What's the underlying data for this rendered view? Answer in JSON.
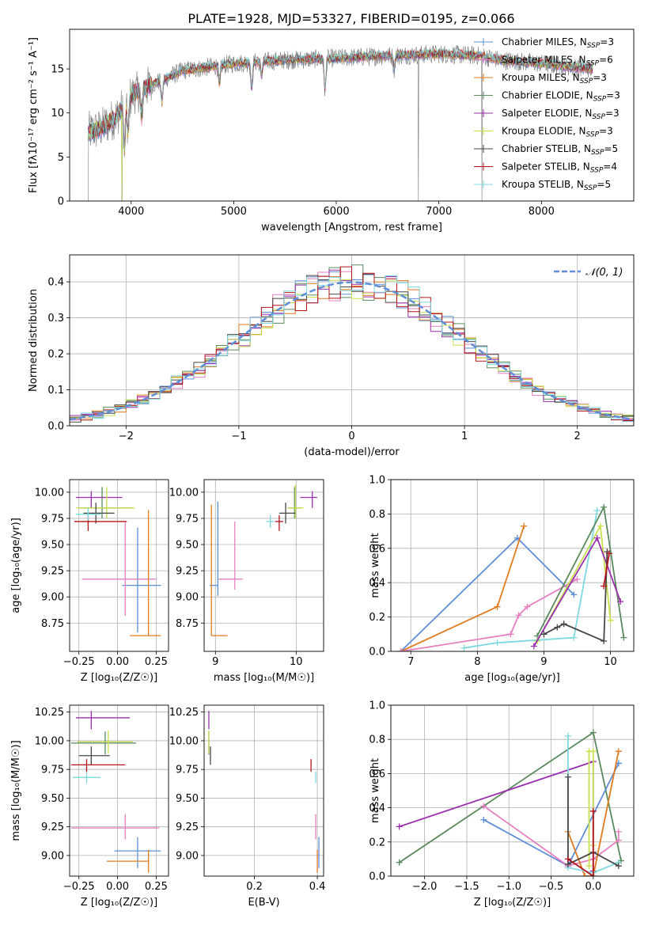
{
  "title": "PLATE=1928, MJD=53327, FIBERID=0195, z=0.066",
  "colors": {
    "Chabrier MILES": "#5f8fd9",
    "Salpeter MILES": "#e67fbf",
    "Kroupa MILES": "#e07b1f",
    "Chabrier ELODIE": "#5a8a5e",
    "Salpeter ELODIE": "#9b2fae",
    "Kroupa ELODIE": "#c7e04e",
    "Chabrier STELIB": "#474747",
    "Salpeter STELIB": "#b4141b",
    "Kroupa STELIB": "#7ed8e0"
  },
  "chart_data": [
    {
      "type": "line",
      "id": "spectrum",
      "xlabel": "wavelength [Angstrom, rest frame]",
      "ylabel": "Flux [f$_\\lambda$10$^{-17}$ erg cm$^{-2}$ s$^{-1}$ A$^{-1}$]",
      "ylabel_text": "Flux [fλ10⁻¹⁷ erg cm⁻² s⁻¹ A⁻¹]",
      "xlim": [
        3400,
        8900
      ],
      "ylim": [
        0,
        19.5
      ],
      "xticks": [
        4000,
        5000,
        6000,
        7000,
        8000
      ],
      "yticks": [
        0,
        5,
        10,
        15
      ],
      "legend_position": "right",
      "legend": [
        "Chabrier MILES, N_SSP=3",
        "Salpeter MILES, N_SSP=6",
        "Kroupa MILES, N_SSP=3",
        "Chabrier ELODIE, N_SSP=3",
        "Salpeter ELODIE, N_SSP=3",
        "Kroupa ELODIE, N_SSP=3",
        "Chabrier STELIB, N_SSP=5",
        "Salpeter STELIB, N_SSP=4",
        "Kroupa STELIB, N_SSP=5"
      ],
      "legend_labels": [
        {
          "prefix": "Chabrier MILES, N",
          "sub": "SSP",
          "suffix": "=3"
        },
        {
          "prefix": "Salpeter MILES, N",
          "sub": "SSP",
          "suffix": "=6"
        },
        {
          "prefix": "Kroupa MILES, N",
          "sub": "SSP",
          "suffix": "=3"
        },
        {
          "prefix": "Chabrier ELODIE, N",
          "sub": "SSP",
          "suffix": "=3"
        },
        {
          "prefix": "Salpeter ELODIE, N",
          "sub": "SSP",
          "suffix": "=3"
        },
        {
          "prefix": "Kroupa ELODIE, N",
          "sub": "SSP",
          "suffix": "=3"
        },
        {
          "prefix": "Chabrier STELIB, N",
          "sub": "SSP",
          "suffix": "=5"
        },
        {
          "prefix": "Salpeter STELIB, N",
          "sub": "SSP",
          "suffix": "=4"
        },
        {
          "prefix": "Kroupa STELIB, N",
          "sub": "SSP",
          "suffix": "=5"
        }
      ],
      "continuum": {
        "x": [
          3580,
          3700,
          3850,
          4000,
          4200,
          4500,
          5000,
          5500,
          6000,
          6500,
          7000,
          7400,
          7600,
          8000,
          8300,
          8500
        ],
        "y": [
          7.8,
          8.2,
          9.5,
          12.0,
          13.2,
          14.8,
          15.6,
          16.0,
          16.2,
          16.5,
          16.7,
          16.5,
          16.0,
          15.6,
          15.2,
          15.0
        ]
      },
      "absorption_features": [
        {
          "x": 3934,
          "depth": 5
        },
        {
          "x": 3969,
          "depth": 4
        },
        {
          "x": 4102,
          "depth": 3
        },
        {
          "x": 4300,
          "depth": 2.5
        },
        {
          "x": 4861,
          "depth": 2
        },
        {
          "x": 5175,
          "depth": 3
        },
        {
          "x": 5270,
          "depth": 1.5
        },
        {
          "x": 5890,
          "depth": 3.5
        },
        {
          "x": 6563,
          "depth": 1.5
        }
      ],
      "spikes_to_zero": [
        3580,
        3910,
        6800,
        7420
      ]
    },
    {
      "type": "histogram",
      "id": "residuals",
      "xlabel": "(data-model)/error",
      "ylabel": "Normed distribution",
      "xlim": [
        -2.5,
        2.5
      ],
      "ylim": [
        0,
        0.475
      ],
      "xticks": [
        -2,
        -1,
        0,
        1,
        2
      ],
      "yticks": [
        0.0,
        0.1,
        0.2,
        0.3,
        0.4
      ],
      "bin_width": 0.1,
      "grid": true,
      "legend": [
        "𝒩(0, 1)"
      ],
      "legend_position": "top-right",
      "reference_curve": {
        "name": "𝒩(0, 1)",
        "mean": 0,
        "sigma": 1,
        "style": "dashed",
        "color": "#5f8fd9"
      }
    },
    {
      "type": "scatter",
      "id": "age_vs_Z",
      "xlabel": "Z [log₁₀(Z/Z☉)]",
      "ylabel": "age  [log₁₀(age/yr)]",
      "xlim": [
        -0.31,
        0.33
      ],
      "ylim": [
        8.48,
        10.12
      ],
      "xticks": [
        -0.25,
        0.0,
        0.25
      ],
      "yticks": [
        8.75,
        9.0,
        9.25,
        9.5,
        9.75,
        10.0
      ],
      "grid": true,
      "errorbars": [
        {
          "model": "Chabrier MILES",
          "x": 0.13,
          "y": 9.11,
          "xerr": [
            0.1,
            0.15
          ],
          "yerr": [
            0.45,
            0.55
          ]
        },
        {
          "model": "Salpeter MILES",
          "x": 0.05,
          "y": 9.17,
          "xerr": [
            0.28,
            0.2
          ],
          "yerr": [
            0.35,
            0.55
          ]
        },
        {
          "model": "Kroupa MILES",
          "x": 0.2,
          "y": 8.63,
          "xerr": [
            0.12,
            0.08
          ],
          "yerr": [
            0.0,
            1.2
          ]
        },
        {
          "model": "Chabrier ELODIE",
          "x": -0.1,
          "y": 9.85,
          "xerr": [
            0.15,
            0.2
          ],
          "yerr": [
            0.1,
            0.2
          ]
        },
        {
          "model": "Salpeter ELODIE",
          "x": -0.17,
          "y": 9.95,
          "xerr": [
            0.1,
            0.2
          ],
          "yerr": [
            0.1,
            0.06
          ]
        },
        {
          "model": "Kroupa ELODIE",
          "x": -0.07,
          "y": 9.85,
          "xerr": [
            0.2,
            0.18
          ],
          "yerr": [
            0.1,
            0.2
          ]
        },
        {
          "model": "Chabrier STELIB",
          "x": -0.14,
          "y": 9.8,
          "xerr": [
            0.08,
            0.12
          ],
          "yerr": [
            0.1,
            0.1
          ]
        },
        {
          "model": "Salpeter STELIB",
          "x": -0.19,
          "y": 9.72,
          "xerr": [
            0.09,
            0.25
          ],
          "yerr": [
            0.09,
            0.06
          ]
        },
        {
          "model": "Kroupa STELIB",
          "x": -0.19,
          "y": 9.79,
          "xerr": [
            0.08,
            0.08
          ],
          "yerr": [
            0.06,
            0.06
          ]
        }
      ]
    },
    {
      "type": "scatter",
      "id": "age_vs_mass",
      "xlabel": "mass [log₁₀(M/M☉)]",
      "ylabel": "",
      "xlim": [
        8.86,
        10.34
      ],
      "ylim": [
        8.48,
        10.12
      ],
      "xticks": [
        9,
        10
      ],
      "yticks": [
        8.75,
        9.0,
        9.25,
        9.5,
        9.75,
        10.0
      ],
      "grid": true,
      "errorbars": [
        {
          "model": "Chabrier MILES",
          "x": 9.03,
          "y": 9.11,
          "xerr": [
            0.1,
            0.0
          ],
          "yerr": [
            0.1,
            0.8
          ]
        },
        {
          "model": "Salpeter MILES",
          "x": 9.24,
          "y": 9.17,
          "xerr": [
            0.2,
            0.1
          ],
          "yerr": [
            0.1,
            0.55
          ]
        },
        {
          "model": "Kroupa MILES",
          "x": 8.95,
          "y": 8.63,
          "xerr": [
            0.0,
            0.2
          ],
          "yerr": [
            0.0,
            1.25
          ]
        },
        {
          "model": "Chabrier ELODIE",
          "x": 9.98,
          "y": 9.85,
          "xerr": [
            0.08,
            0.08
          ],
          "yerr": [
            0.1,
            0.2
          ]
        },
        {
          "model": "Salpeter ELODIE",
          "x": 10.2,
          "y": 9.95,
          "xerr": [
            0.15,
            0.06
          ],
          "yerr": [
            0.1,
            0.06
          ]
        },
        {
          "model": "Kroupa ELODIE",
          "x": 9.99,
          "y": 9.85,
          "xerr": [
            0.1,
            0.1
          ],
          "yerr": [
            0.1,
            0.22
          ]
        },
        {
          "model": "Chabrier STELIB",
          "x": 9.87,
          "y": 9.8,
          "xerr": [
            0.08,
            0.12
          ],
          "yerr": [
            0.1,
            0.1
          ]
        },
        {
          "model": "Salpeter STELIB",
          "x": 9.79,
          "y": 9.72,
          "xerr": [
            0.05,
            0.05
          ],
          "yerr": [
            0.09,
            0.06
          ]
        },
        {
          "model": "Kroupa STELIB",
          "x": 9.68,
          "y": 9.72,
          "xerr": [
            0.05,
            0.05
          ],
          "yerr": [
            0.06,
            0.06
          ]
        }
      ]
    },
    {
      "type": "line",
      "id": "weight_vs_age",
      "xlabel": "age  [log₁₀(age/yr)]",
      "ylabel": "mass weight",
      "xlim": [
        6.7,
        10.35
      ],
      "ylim": [
        0,
        1.0
      ],
      "xticks": [
        7,
        8,
        9,
        10
      ],
      "yticks": [
        0.0,
        0.2,
        0.4,
        0.6,
        0.8,
        1.0
      ],
      "grid": true,
      "series": [
        {
          "name": "Chabrier MILES",
          "x": [
            6.85,
            8.6,
            9.45
          ],
          "y": [
            0.0,
            0.66,
            0.33
          ]
        },
        {
          "name": "Kroupa MILES",
          "x": [
            6.85,
            8.3,
            8.7
          ],
          "y": [
            0.0,
            0.26,
            0.73
          ]
        },
        {
          "name": "Salpeter MILES",
          "x": [
            6.85,
            8.5,
            8.62,
            8.75,
            9.5
          ],
          "y": [
            0.0,
            0.1,
            0.21,
            0.26,
            0.42
          ]
        },
        {
          "name": "Kroupa STELIB",
          "x": [
            7.8,
            8.3,
            9.45,
            9.8
          ],
          "y": [
            0.02,
            0.05,
            0.08,
            0.82
          ]
        },
        {
          "name": "Chabrier ELODIE",
          "x": [
            8.9,
            9.9,
            10.2
          ],
          "y": [
            0.09,
            0.84,
            0.08
          ]
        },
        {
          "name": "Kroupa ELODIE",
          "x": [
            8.9,
            9.85,
            10.0
          ],
          "y": [
            0.06,
            0.73,
            0.18
          ]
        },
        {
          "name": "Salpeter ELODIE",
          "x": [
            8.85,
            9.8,
            10.15
          ],
          "y": [
            0.03,
            0.66,
            0.29
          ]
        },
        {
          "name": "Chabrier STELIB",
          "x": [
            9.0,
            9.2,
            9.3,
            9.9,
            9.95
          ],
          "y": [
            0.1,
            0.14,
            0.16,
            0.06,
            0.58
          ]
        },
        {
          "name": "Salpeter STELIB",
          "x": [
            9.9,
            9.98
          ],
          "y": [
            0.38,
            0.57
          ]
        }
      ]
    },
    {
      "type": "scatter",
      "id": "mass_vs_Z",
      "xlabel": "Z [log₁₀(Z/Z☉)]",
      "ylabel": "mass [log₁₀(M/M☉)]",
      "xlim": [
        -0.31,
        0.33
      ],
      "ylim": [
        8.82,
        10.31
      ],
      "xticks": [
        -0.25,
        0.0,
        0.25
      ],
      "yticks": [
        9.0,
        9.25,
        9.5,
        9.75,
        10.0,
        10.25
      ],
      "grid": true,
      "errorbars": [
        {
          "model": "Chabrier MILES",
          "x": 0.13,
          "y": 9.04,
          "xerr": [
            0.15,
            0.15
          ],
          "yerr": [
            0.15,
            0.12
          ]
        },
        {
          "model": "Salpeter MILES",
          "x": 0.05,
          "y": 9.24,
          "xerr": [
            0.35,
            0.22
          ],
          "yerr": [
            0.1,
            0.12
          ]
        },
        {
          "model": "Kroupa MILES",
          "x": 0.2,
          "y": 8.95,
          "xerr": [
            0.27,
            0.0
          ],
          "yerr": [
            0.1,
            0.1
          ]
        },
        {
          "model": "Chabrier ELODIE",
          "x": -0.08,
          "y": 9.98,
          "xerr": [
            0.22,
            0.2
          ],
          "yerr": [
            0.1,
            0.1
          ]
        },
        {
          "model": "Salpeter ELODIE",
          "x": -0.17,
          "y": 10.2,
          "xerr": [
            0.1,
            0.25
          ],
          "yerr": [
            0.1,
            0.06
          ]
        },
        {
          "model": "Kroupa ELODIE",
          "x": -0.06,
          "y": 9.99,
          "xerr": [
            0.2,
            0.16
          ],
          "yerr": [
            0.1,
            0.1
          ]
        },
        {
          "model": "Chabrier STELIB",
          "x": -0.17,
          "y": 9.87,
          "xerr": [
            0.08,
            0.12
          ],
          "yerr": [
            0.08,
            0.08
          ]
        },
        {
          "model": "Salpeter STELIB",
          "x": -0.2,
          "y": 9.79,
          "xerr": [
            0.1,
            0.25
          ],
          "yerr": [
            0.06,
            0.05
          ]
        },
        {
          "model": "Kroupa STELIB",
          "x": -0.2,
          "y": 9.68,
          "xerr": [
            0.09,
            0.09
          ],
          "yerr": [
            0.05,
            0.05
          ]
        }
      ]
    },
    {
      "type": "scatter",
      "id": "mass_vs_ebv",
      "xlabel": "E(B-V)",
      "ylabel": "",
      "xlim": [
        0.04,
        0.42
      ],
      "ylim": [
        8.82,
        10.31
      ],
      "xticks": [
        0.2,
        0.4
      ],
      "yticks": [
        9.0,
        9.25,
        9.5,
        9.75,
        10.0,
        10.25
      ],
      "grid": true,
      "errorbars": [
        {
          "model": "Chabrier MILES",
          "x": 0.405,
          "y": 9.04,
          "xerr": [
            0.0,
            0.0
          ],
          "yerr": [
            0.15,
            0.12
          ]
        },
        {
          "model": "Salpeter MILES",
          "x": 0.395,
          "y": 9.24,
          "xerr": [
            0.0,
            0.0
          ],
          "yerr": [
            0.1,
            0.12
          ]
        },
        {
          "model": "Kroupa MILES",
          "x": 0.4,
          "y": 8.95,
          "xerr": [
            0.0,
            0.0
          ],
          "yerr": [
            0.1,
            0.1
          ]
        },
        {
          "model": "Chabrier ELODIE",
          "x": 0.055,
          "y": 9.98,
          "xerr": [
            0.0,
            0.0
          ],
          "yerr": [
            0.1,
            0.1
          ]
        },
        {
          "model": "Salpeter ELODIE",
          "x": 0.055,
          "y": 10.2,
          "xerr": [
            0.0,
            0.0
          ],
          "yerr": [
            0.1,
            0.06
          ]
        },
        {
          "model": "Kroupa ELODIE",
          "x": 0.055,
          "y": 9.99,
          "xerr": [
            0.0,
            0.0
          ],
          "yerr": [
            0.1,
            0.1
          ]
        },
        {
          "model": "Chabrier STELIB",
          "x": 0.06,
          "y": 9.87,
          "xerr": [
            0.0,
            0.0
          ],
          "yerr": [
            0.08,
            0.08
          ]
        },
        {
          "model": "Salpeter STELIB",
          "x": 0.38,
          "y": 9.79,
          "xerr": [
            0.0,
            0.0
          ],
          "yerr": [
            0.06,
            0.05
          ]
        },
        {
          "model": "Kroupa STELIB",
          "x": 0.395,
          "y": 9.68,
          "xerr": [
            0.0,
            0.0
          ],
          "yerr": [
            0.05,
            0.05
          ]
        }
      ]
    },
    {
      "type": "line",
      "id": "weight_vs_Z",
      "xlabel": "Z [log₁₀(Z/Z☉)]",
      "ylabel": "mass weight",
      "xlim": [
        -2.4,
        0.48
      ],
      "ylim": [
        0,
        1.0
      ],
      "xticks": [
        -2.0,
        -1.5,
        -1.0,
        -0.5,
        0.0
      ],
      "yticks": [
        0.0,
        0.2,
        0.4,
        0.6,
        0.8,
        1.0
      ],
      "grid": true,
      "series": [
        {
          "name": "Chabrier ELODIE",
          "x": [
            -2.3,
            0.0,
            0.33
          ],
          "y": [
            0.08,
            0.84,
            0.09
          ]
        },
        {
          "name": "Salpeter ELODIE",
          "x": [
            -2.3,
            0.0,
            0.0
          ],
          "y": [
            0.29,
            0.67,
            0.03
          ]
        },
        {
          "name": "Chabrier MILES",
          "x": [
            -1.3,
            -0.3,
            0.3,
            0.3
          ],
          "y": [
            0.33,
            0.06,
            0.66,
            0.66
          ]
        },
        {
          "name": "Salpeter MILES",
          "x": [
            -1.3,
            -0.3,
            0.0,
            0.3,
            0.3
          ],
          "y": [
            0.41,
            0.06,
            0.1,
            0.21,
            0.26
          ]
        },
        {
          "name": "Kroupa MILES",
          "x": [
            -0.3,
            -0.1,
            0.0,
            0.3
          ],
          "y": [
            0.26,
            0.0,
            0.0,
            0.73
          ]
        },
        {
          "name": "Kroupa ELODIE",
          "x": [
            -0.05,
            -0.05,
            0.0,
            0.0
          ],
          "y": [
            0.06,
            0.73,
            0.73,
            0.18
          ]
        },
        {
          "name": "Kroupa STELIB",
          "x": [
            -0.3,
            -0.3,
            0.0,
            0.3
          ],
          "y": [
            0.82,
            0.05,
            0.02,
            0.08
          ]
        },
        {
          "name": "Chabrier STELIB",
          "x": [
            -0.3,
            -0.3,
            0.0,
            0.3
          ],
          "y": [
            0.58,
            0.07,
            0.14,
            0.06
          ]
        },
        {
          "name": "Salpeter STELIB",
          "x": [
            -0.3,
            0.0,
            0.0
          ],
          "y": [
            0.1,
            0.0,
            0.38
          ]
        }
      ]
    }
  ]
}
